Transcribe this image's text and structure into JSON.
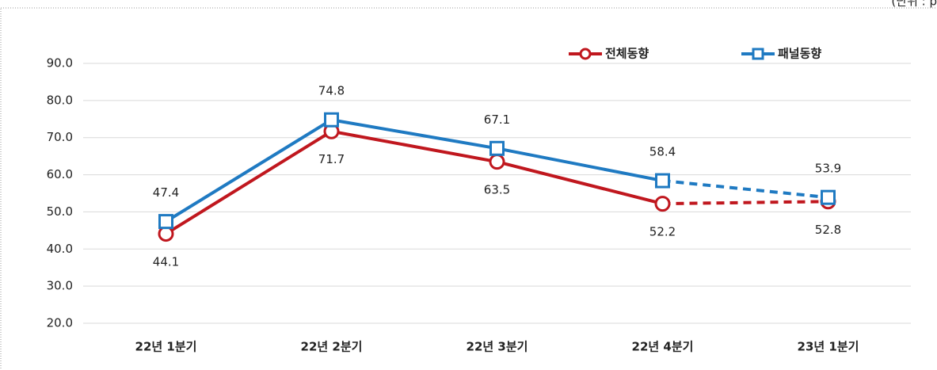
{
  "chart_data": {
    "type": "line",
    "unit_note": "(단위 : p",
    "categories": [
      "22년 1분기",
      "22년 2분기",
      "22년 3분기",
      "22년 4분기",
      "23년 1분기"
    ],
    "series": [
      {
        "name": "전체동향",
        "color": "#c0171e",
        "marker": "circle",
        "label_position": "below",
        "dash_from_index": 3,
        "values": [
          44.1,
          71.7,
          63.5,
          52.2,
          52.8
        ]
      },
      {
        "name": "패널동향",
        "color": "#1f7ac2",
        "marker": "square",
        "label_position": "above",
        "dash_from_index": 3,
        "values": [
          47.4,
          74.8,
          67.1,
          58.4,
          53.9
        ]
      }
    ],
    "ylim": [
      20,
      90
    ],
    "yticks": [
      {
        "value": 20,
        "label": "20.0"
      },
      {
        "value": 30,
        "label": "30.0"
      },
      {
        "value": 40,
        "label": "40.0"
      },
      {
        "value": 50,
        "label": "50.0"
      },
      {
        "value": 60,
        "label": "60.0"
      },
      {
        "value": 70,
        "label": "70.0"
      },
      {
        "value": 80,
        "label": "80.0"
      },
      {
        "value": 90,
        "label": "90.0"
      }
    ],
    "grid": true,
    "legend": "top-right"
  }
}
